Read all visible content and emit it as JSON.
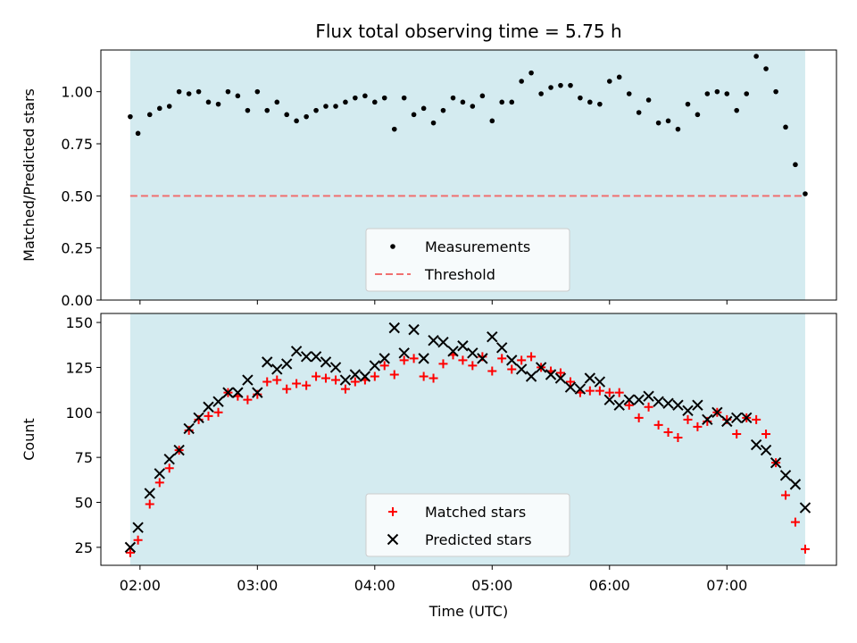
{
  "colors": {
    "span": "#d4ebf0",
    "threshold": "#f07070",
    "matched": "#ff0000",
    "predicted": "#000000",
    "measurement": "#000000"
  },
  "chart_data": [
    {
      "type": "scatter",
      "title": "Flux total observing time = 5.75 h",
      "xlabel": "",
      "ylabel": "Matched/Predicted stars",
      "ylim": [
        0,
        1.2
      ],
      "yticks": [
        "0.00",
        "0.25",
        "0.50",
        "0.75",
        "1.00"
      ],
      "ytick_values": [
        0,
        0.25,
        0.5,
        0.75,
        1.0
      ],
      "x_unit": "hours UTC",
      "xlim": [
        1.6667,
        7.9333
      ],
      "observing_span": [
        1.9167,
        7.6667
      ],
      "legend": {
        "position": "lower-center",
        "entries": [
          "Measurements",
          "Threshold"
        ]
      },
      "threshold": 0.5,
      "series": [
        {
          "name": "Measurements",
          "x": [
            1.917,
            1.983,
            2.083,
            2.167,
            2.25,
            2.333,
            2.417,
            2.5,
            2.583,
            2.667,
            2.75,
            2.833,
            2.917,
            3.0,
            3.083,
            3.167,
            3.25,
            3.333,
            3.417,
            3.5,
            3.583,
            3.667,
            3.75,
            3.833,
            3.917,
            4.0,
            4.083,
            4.167,
            4.25,
            4.333,
            4.417,
            4.5,
            4.583,
            4.667,
            4.75,
            4.833,
            4.917,
            5.0,
            5.083,
            5.167,
            5.25,
            5.333,
            5.417,
            5.5,
            5.583,
            5.667,
            5.75,
            5.833,
            5.917,
            6.0,
            6.083,
            6.167,
            6.25,
            6.333,
            6.417,
            6.5,
            6.583,
            6.667,
            6.75,
            6.833,
            6.917,
            7.0,
            7.083,
            7.167,
            7.25,
            7.333,
            7.417,
            7.5,
            7.583,
            7.667
          ],
          "values": [
            0.88,
            0.8,
            0.89,
            0.92,
            0.93,
            1.0,
            0.99,
            1.0,
            0.95,
            0.94,
            1.0,
            0.98,
            0.91,
            1.0,
            0.91,
            0.95,
            0.89,
            0.86,
            0.88,
            0.91,
            0.93,
            0.93,
            0.95,
            0.97,
            0.98,
            0.95,
            0.97,
            0.82,
            0.97,
            0.89,
            0.92,
            0.85,
            0.91,
            0.97,
            0.95,
            0.93,
            0.98,
            0.86,
            0.95,
            0.95,
            1.05,
            1.09,
            0.99,
            1.02,
            1.03,
            1.03,
            0.97,
            0.95,
            0.94,
            1.05,
            1.07,
            0.99,
            0.9,
            0.96,
            0.85,
            0.86,
            0.82,
            0.94,
            0.89,
            0.99,
            1.0,
            0.99,
            0.91,
            0.99,
            1.17,
            1.11,
            1.0,
            0.83,
            0.65,
            0.51
          ]
        }
      ]
    },
    {
      "type": "scatter",
      "title": "",
      "xlabel": "Time (UTC)",
      "ylabel": "Count",
      "ylim": [
        15,
        155
      ],
      "yticks": [
        "25",
        "50",
        "75",
        "100",
        "125",
        "150"
      ],
      "ytick_values": [
        25,
        50,
        75,
        100,
        125,
        150
      ],
      "x_unit": "hours UTC",
      "xlim": [
        1.6667,
        7.9333
      ],
      "xticks": [
        "02:00",
        "03:00",
        "04:00",
        "05:00",
        "06:00",
        "07:00"
      ],
      "xtick_values": [
        2,
        3,
        4,
        5,
        6,
        7
      ],
      "observing_span": [
        1.9167,
        7.6667
      ],
      "legend": {
        "position": "lower-center",
        "entries": [
          "Matched stars",
          "Predicted stars"
        ]
      },
      "series": [
        {
          "name": "Matched stars",
          "x": [
            1.917,
            1.983,
            2.083,
            2.167,
            2.25,
            2.333,
            2.417,
            2.5,
            2.583,
            2.667,
            2.75,
            2.833,
            2.917,
            3.0,
            3.083,
            3.167,
            3.25,
            3.333,
            3.417,
            3.5,
            3.583,
            3.667,
            3.75,
            3.833,
            3.917,
            4.0,
            4.083,
            4.167,
            4.25,
            4.333,
            4.417,
            4.5,
            4.583,
            4.667,
            4.75,
            4.833,
            4.917,
            5.0,
            5.083,
            5.167,
            5.25,
            5.333,
            5.417,
            5.5,
            5.583,
            5.667,
            5.75,
            5.833,
            5.917,
            6.0,
            6.083,
            6.167,
            6.25,
            6.333,
            6.417,
            6.5,
            6.583,
            6.667,
            6.75,
            6.833,
            6.917,
            7.0,
            7.083,
            7.167,
            7.25,
            7.333,
            7.417,
            7.5,
            7.583,
            7.667
          ],
          "values": [
            22,
            29,
            49,
            61,
            69,
            79,
            90,
            96,
            98,
            100,
            111,
            109,
            107,
            110,
            117,
            118,
            113,
            116,
            115,
            120,
            119,
            118,
            113,
            117,
            118,
            120,
            126,
            121,
            129,
            130,
            120,
            119,
            127,
            132,
            129,
            126,
            131,
            123,
            130,
            124,
            129,
            131,
            125,
            123,
            122,
            117,
            111,
            112,
            112,
            111,
            111,
            104,
            97,
            103,
            93,
            89,
            86,
            96,
            92,
            95,
            100,
            96,
            88,
            97,
            96,
            88,
            72,
            54,
            39,
            24
          ]
        },
        {
          "name": "Predicted stars",
          "x": [
            1.917,
            1.983,
            2.083,
            2.167,
            2.25,
            2.333,
            2.417,
            2.5,
            2.583,
            2.667,
            2.75,
            2.833,
            2.917,
            3.0,
            3.083,
            3.167,
            3.25,
            3.333,
            3.417,
            3.5,
            3.583,
            3.667,
            3.75,
            3.833,
            3.917,
            4.0,
            4.083,
            4.167,
            4.25,
            4.333,
            4.417,
            4.5,
            4.583,
            4.667,
            4.75,
            4.833,
            4.917,
            5.0,
            5.083,
            5.167,
            5.25,
            5.333,
            5.417,
            5.5,
            5.583,
            5.667,
            5.75,
            5.833,
            5.917,
            6.0,
            6.083,
            6.167,
            6.25,
            6.333,
            6.417,
            6.5,
            6.583,
            6.667,
            6.75,
            6.833,
            6.917,
            7.0,
            7.083,
            7.167,
            7.25,
            7.333,
            7.417,
            7.5,
            7.583,
            7.667
          ],
          "values": [
            25,
            36,
            55,
            66,
            74,
            79,
            91,
            97,
            103,
            106,
            111,
            111,
            118,
            111,
            128,
            124,
            127,
            134,
            131,
            131,
            128,
            125,
            118,
            121,
            120,
            126,
            130,
            147,
            133,
            146,
            130,
            140,
            139,
            134,
            137,
            133,
            130,
            142,
            136,
            129,
            124,
            120,
            125,
            121,
            119,
            114,
            113,
            119,
            117,
            107,
            104,
            107,
            107,
            109,
            106,
            105,
            104,
            101,
            104,
            96,
            100,
            95,
            97,
            97,
            82,
            79,
            72,
            65,
            60,
            47
          ]
        }
      ]
    }
  ]
}
